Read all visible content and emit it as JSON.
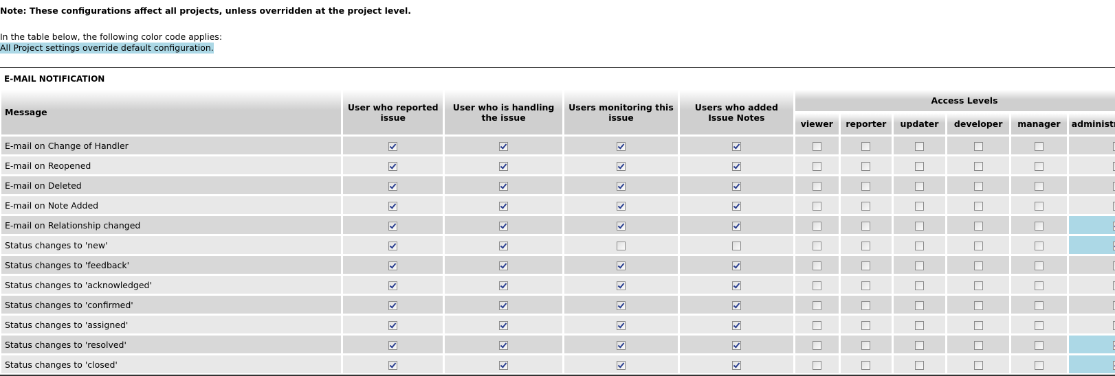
{
  "note": "Note: These configurations affect all projects, unless overridden at the project level.",
  "legend_intro": "In the table below, the following color code applies:",
  "legend_override": "All Project settings override default configuration.",
  "section_title": "E-MAIL NOTIFICATION",
  "colors": {
    "override": "#acd8e6",
    "row_dark": "#d8d8d8",
    "row_light": "#e8e8e8"
  },
  "headers": {
    "message": "Message",
    "reported": "User who reported issue",
    "handling": "User who is handling the issue",
    "monitoring": "Users monitoring this issue",
    "notes": "Users who added Issue Notes",
    "access_levels": "Access Levels",
    "levels": [
      "viewer",
      "reporter",
      "updater",
      "developer",
      "manager",
      "administrator"
    ]
  },
  "rows": [
    {
      "message": "E-mail on Change of Handler",
      "checks": [
        true,
        true,
        true,
        true
      ],
      "levels": [
        false,
        false,
        false,
        false,
        false,
        false
      ],
      "override": false
    },
    {
      "message": "E-mail on Reopened",
      "checks": [
        true,
        true,
        true,
        true
      ],
      "levels": [
        false,
        false,
        false,
        false,
        false,
        false
      ],
      "override": false
    },
    {
      "message": "E-mail on Deleted",
      "checks": [
        true,
        true,
        true,
        true
      ],
      "levels": [
        false,
        false,
        false,
        false,
        false,
        false
      ],
      "override": false
    },
    {
      "message": "E-mail on Note Added",
      "checks": [
        true,
        true,
        true,
        true
      ],
      "levels": [
        false,
        false,
        false,
        false,
        false,
        false
      ],
      "override": false
    },
    {
      "message": "E-mail on Relationship changed",
      "checks": [
        true,
        true,
        true,
        true
      ],
      "levels": [
        false,
        false,
        false,
        false,
        false,
        true
      ],
      "override": true
    },
    {
      "message": "Status changes to 'new'",
      "checks": [
        true,
        true,
        false,
        false
      ],
      "levels": [
        false,
        false,
        false,
        false,
        false,
        true
      ],
      "override": true
    },
    {
      "message": "Status changes to 'feedback'",
      "checks": [
        true,
        true,
        true,
        true
      ],
      "levels": [
        false,
        false,
        false,
        false,
        false,
        false
      ],
      "override": false
    },
    {
      "message": "Status changes to 'acknowledged'",
      "checks": [
        true,
        true,
        true,
        true
      ],
      "levels": [
        false,
        false,
        false,
        false,
        false,
        false
      ],
      "override": false
    },
    {
      "message": "Status changes to 'confirmed'",
      "checks": [
        true,
        true,
        true,
        true
      ],
      "levels": [
        false,
        false,
        false,
        false,
        false,
        false
      ],
      "override": false
    },
    {
      "message": "Status changes to 'assigned'",
      "checks": [
        true,
        true,
        true,
        true
      ],
      "levels": [
        false,
        false,
        false,
        false,
        false,
        false
      ],
      "override": false
    },
    {
      "message": "Status changes to 'resolved'",
      "checks": [
        true,
        true,
        true,
        true
      ],
      "levels": [
        false,
        false,
        false,
        false,
        false,
        true
      ],
      "override": true
    },
    {
      "message": "Status changes to 'closed'",
      "checks": [
        true,
        true,
        true,
        true
      ],
      "levels": [
        false,
        false,
        false,
        false,
        false,
        true
      ],
      "override": true
    }
  ]
}
